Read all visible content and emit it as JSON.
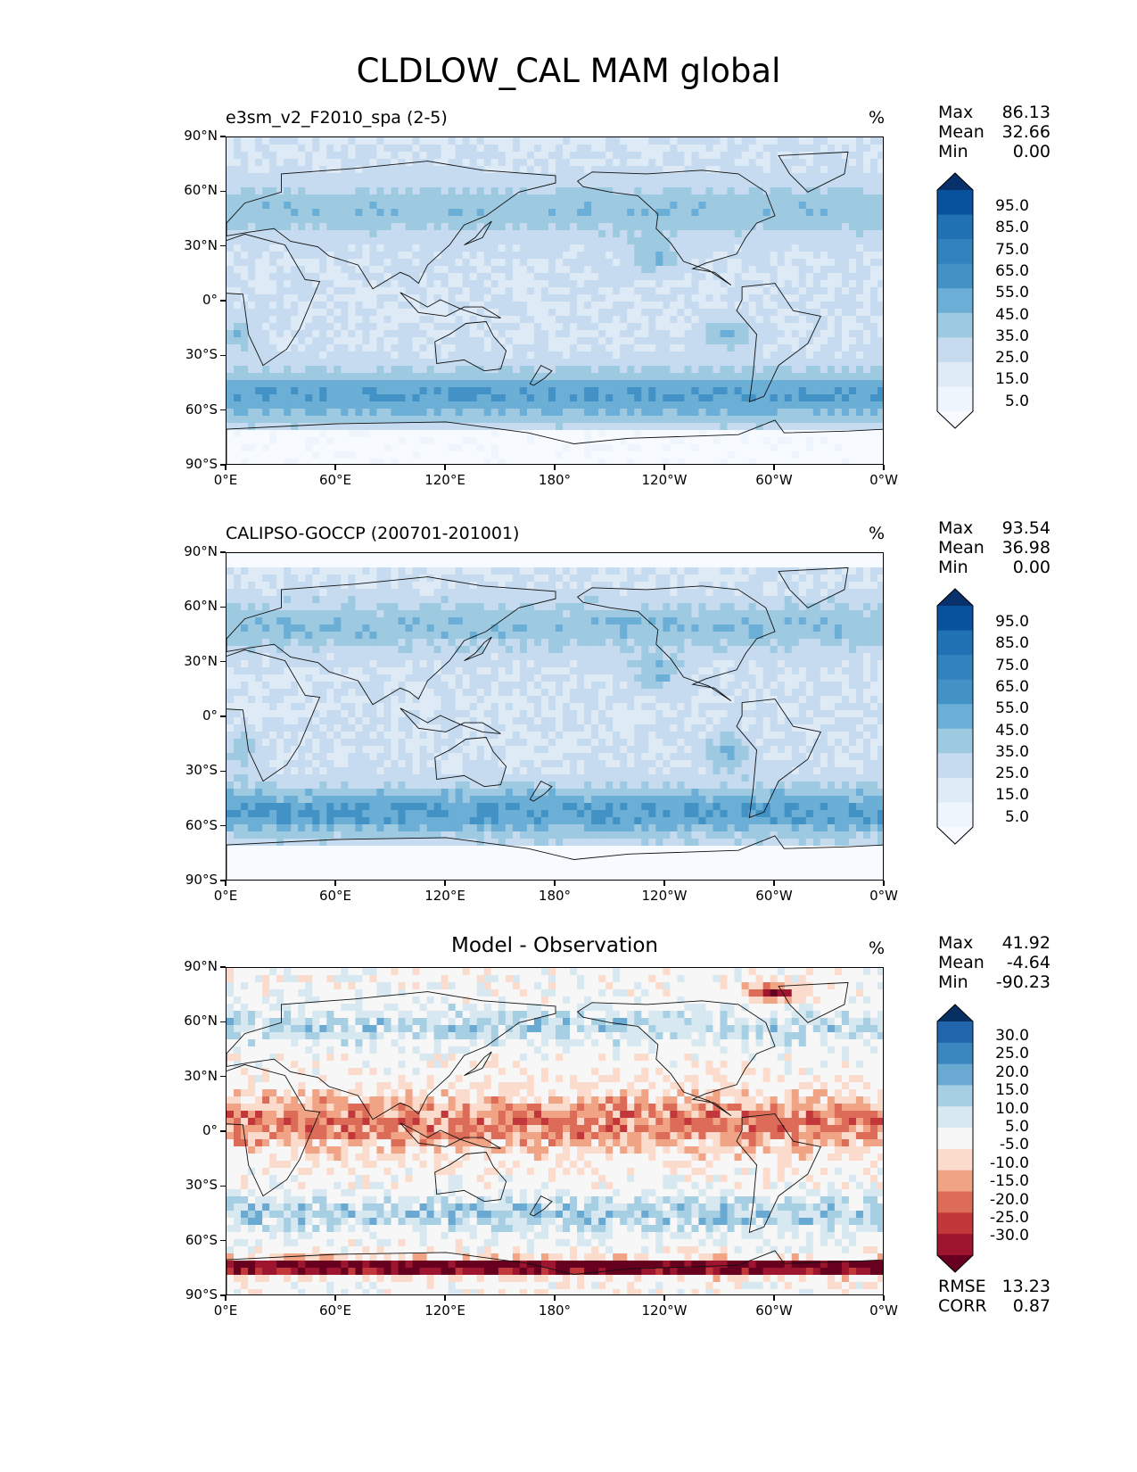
{
  "figure": {
    "title": "CLDLOW_CAL MAM global"
  },
  "axes": {
    "lat_ticks": [
      "90°N",
      "60°N",
      "30°N",
      "0°",
      "30°S",
      "60°S",
      "90°S"
    ],
    "lon_ticks": [
      "0°E",
      "60°E",
      "120°E",
      "180°",
      "120°W",
      "60°W",
      "0°W"
    ]
  },
  "panels": [
    {
      "title": "e3sm_v2_F2010_spa (2-5)",
      "unit": "%",
      "stats": [
        {
          "label": "Max",
          "value": "86.13"
        },
        {
          "label": "Mean",
          "value": "32.66"
        },
        {
          "label": "Min",
          "value": "0.00"
        }
      ],
      "colorbar": {
        "labels": [
          "95.0",
          "85.0",
          "75.0",
          "65.0",
          "55.0",
          "45.0",
          "35.0",
          "25.0",
          "15.0",
          "5.0"
        ],
        "colors": [
          "#08306b",
          "#08519c",
          "#2171b5",
          "#3182bd",
          "#4292c6",
          "#6baed6",
          "#9ecae1",
          "#c6dbef",
          "#deebf7",
          "#eff5fc",
          "#f7fbff"
        ]
      }
    },
    {
      "title": "CALIPSO-GOCCP (200701-201001)",
      "unit": "%",
      "stats": [
        {
          "label": "Max",
          "value": "93.54"
        },
        {
          "label": "Mean",
          "value": "36.98"
        },
        {
          "label": "Min",
          "value": "0.00"
        }
      ],
      "colorbar": {
        "labels": [
          "95.0",
          "85.0",
          "75.0",
          "65.0",
          "55.0",
          "45.0",
          "35.0",
          "25.0",
          "15.0",
          "5.0"
        ],
        "colors": [
          "#08306b",
          "#08519c",
          "#2171b5",
          "#3182bd",
          "#4292c6",
          "#6baed6",
          "#9ecae1",
          "#c6dbef",
          "#deebf7",
          "#eff5fc",
          "#f7fbff"
        ]
      }
    },
    {
      "title": "Model - Observation",
      "unit": "%",
      "stats": [
        {
          "label": "Max",
          "value": "41.92"
        },
        {
          "label": "Mean",
          "value": "-4.64"
        },
        {
          "label": "Min",
          "value": "-90.23"
        }
      ],
      "colorbar": {
        "labels": [
          "30.0",
          "25.0",
          "20.0",
          "15.0",
          "10.0",
          "5.0",
          "-5.0",
          "-10.0",
          "-15.0",
          "-20.0",
          "-25.0",
          "-30.0"
        ],
        "colors": [
          "#053061",
          "#2166ac",
          "#3a87c0",
          "#6aa9d1",
          "#a7cfe4",
          "#d7e8f1",
          "#f7f7f7",
          "#fbdccc",
          "#f1a385",
          "#dc6b58",
          "#c2383a",
          "#9e1530",
          "#67001f"
        ]
      },
      "metrics": [
        {
          "label": "RMSE",
          "value": "13.23"
        },
        {
          "label": "CORR",
          "value": "0.87"
        }
      ]
    }
  ]
}
